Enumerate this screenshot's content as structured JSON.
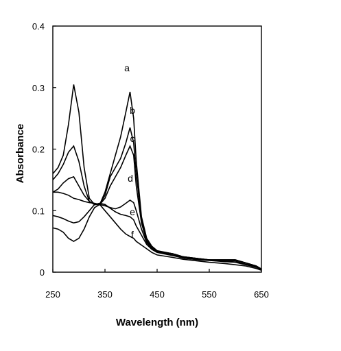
{
  "chart_data": {
    "type": "line",
    "xlabel": "Wavelength (nm)",
    "ylabel": "Absorbance",
    "xlim": [
      250,
      650
    ],
    "ylim": [
      0,
      0.4
    ],
    "xticks": [
      "250",
      "350",
      "450",
      "550",
      "650"
    ],
    "yticks": [
      "0",
      "0.1",
      "0.2",
      "0.3",
      "0.4"
    ],
    "grid": false,
    "line_color": "#000000",
    "series": [
      {
        "name": "a",
        "x": [
          250,
          260,
          270,
          280,
          290,
          300,
          310,
          320,
          330,
          340,
          350,
          360,
          370,
          380,
          390,
          398,
          405,
          410,
          420,
          430,
          440,
          450,
          480,
          500,
          530,
          550,
          580,
          600,
          620,
          640,
          650
        ],
        "y": [
          0.16,
          0.17,
          0.19,
          0.24,
          0.305,
          0.26,
          0.17,
          0.12,
          0.11,
          0.11,
          0.13,
          0.16,
          0.19,
          0.22,
          0.26,
          0.293,
          0.25,
          0.18,
          0.09,
          0.055,
          0.042,
          0.035,
          0.03,
          0.025,
          0.022,
          0.02,
          0.02,
          0.02,
          0.015,
          0.01,
          0.005
        ]
      },
      {
        "name": "b",
        "x": [
          250,
          260,
          270,
          280,
          290,
          300,
          310,
          320,
          330,
          340,
          350,
          360,
          370,
          380,
          390,
          398,
          405,
          410,
          420,
          430,
          440,
          450,
          480,
          500,
          530,
          550,
          580,
          600,
          620,
          640,
          650
        ],
        "y": [
          0.15,
          0.16,
          0.175,
          0.195,
          0.205,
          0.18,
          0.14,
          0.115,
          0.11,
          0.11,
          0.125,
          0.155,
          0.17,
          0.185,
          0.21,
          0.235,
          0.21,
          0.16,
          0.085,
          0.052,
          0.04,
          0.034,
          0.03,
          0.025,
          0.022,
          0.02,
          0.02,
          0.02,
          0.015,
          0.01,
          0.005
        ]
      },
      {
        "name": "c",
        "x": [
          250,
          260,
          270,
          280,
          290,
          300,
          310,
          320,
          330,
          340,
          350,
          360,
          370,
          380,
          390,
          398,
          405,
          410,
          420,
          430,
          440,
          450,
          480,
          500,
          530,
          550,
          580,
          600,
          620,
          640,
          650
        ],
        "y": [
          0.13,
          0.135,
          0.145,
          0.152,
          0.155,
          0.14,
          0.125,
          0.115,
          0.11,
          0.11,
          0.12,
          0.14,
          0.155,
          0.17,
          0.19,
          0.205,
          0.19,
          0.14,
          0.08,
          0.05,
          0.04,
          0.034,
          0.03,
          0.025,
          0.022,
          0.02,
          0.02,
          0.02,
          0.015,
          0.01,
          0.005
        ]
      },
      {
        "name": "d",
        "x": [
          250,
          260,
          270,
          280,
          290,
          300,
          310,
          320,
          330,
          340,
          350,
          360,
          370,
          380,
          390,
          398,
          405,
          410,
          420,
          430,
          440,
          450,
          480,
          500,
          530,
          550,
          580,
          600,
          620,
          640,
          650
        ],
        "y": [
          0.13,
          0.13,
          0.128,
          0.125,
          0.12,
          0.118,
          0.115,
          0.113,
          0.112,
          0.11,
          0.108,
          0.105,
          0.103,
          0.106,
          0.112,
          0.117,
          0.113,
          0.1,
          0.07,
          0.048,
          0.038,
          0.033,
          0.028,
          0.024,
          0.021,
          0.02,
          0.018,
          0.018,
          0.013,
          0.009,
          0.004
        ]
      },
      {
        "name": "e",
        "x": [
          250,
          260,
          270,
          280,
          290,
          300,
          310,
          320,
          330,
          340,
          350,
          360,
          370,
          380,
          390,
          398,
          405,
          410,
          420,
          430,
          440,
          450,
          480,
          500,
          530,
          550,
          580,
          600,
          620,
          640,
          650
        ],
        "y": [
          0.092,
          0.09,
          0.087,
          0.083,
          0.08,
          0.082,
          0.09,
          0.1,
          0.11,
          0.112,
          0.11,
          0.104,
          0.098,
          0.094,
          0.092,
          0.09,
          0.085,
          0.075,
          0.06,
          0.045,
          0.037,
          0.032,
          0.027,
          0.023,
          0.02,
          0.019,
          0.017,
          0.016,
          0.012,
          0.008,
          0.004
        ]
      },
      {
        "name": "f",
        "x": [
          250,
          260,
          270,
          280,
          290,
          300,
          310,
          320,
          330,
          340,
          350,
          360,
          370,
          380,
          390,
          398,
          405,
          410,
          420,
          430,
          440,
          450,
          480,
          500,
          530,
          550,
          580,
          600,
          620,
          640,
          650
        ],
        "y": [
          0.072,
          0.07,
          0.065,
          0.055,
          0.05,
          0.055,
          0.07,
          0.09,
          0.105,
          0.11,
          0.1,
          0.09,
          0.08,
          0.07,
          0.062,
          0.058,
          0.055,
          0.05,
          0.044,
          0.038,
          0.032,
          0.028,
          0.024,
          0.021,
          0.018,
          0.016,
          0.014,
          0.012,
          0.01,
          0.006,
          0.003
        ]
      }
    ]
  }
}
